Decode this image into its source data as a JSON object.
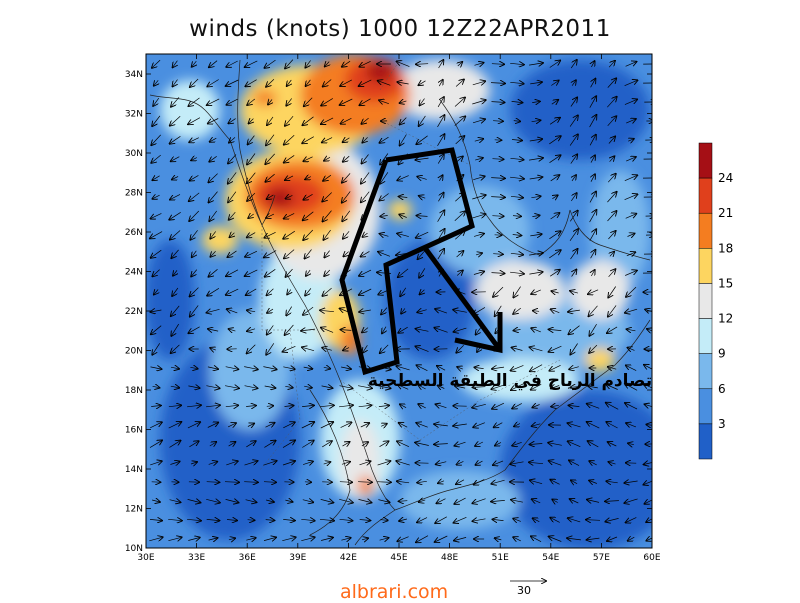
{
  "title": "winds (knots) 1000 12Z22APR2011",
  "annotation": "تصادم الرياح في الطبقة السطحية",
  "footer": {
    "site": "albrari.com",
    "reference_vector": "30"
  },
  "axes": {
    "lon_labels": [
      "30E",
      "33E",
      "36E",
      "39E",
      "42E",
      "45E",
      "48E",
      "51E",
      "54E",
      "57E",
      "60E"
    ],
    "lat_labels": [
      "34N",
      "32N",
      "30N",
      "28N",
      "26N",
      "24N",
      "22N",
      "20N",
      "18N",
      "16N",
      "14N",
      "12N",
      "10N"
    ]
  },
  "colorbar": {
    "labels": [
      "24",
      "21",
      "18",
      "15",
      "12",
      "9",
      "6",
      "3"
    ],
    "colors": [
      "#a50f15",
      "#e0401c",
      "#f47d20",
      "#fdd560",
      "#e8e8e8",
      "#c4ecf8",
      "#7ab8ec",
      "#4a8fe0",
      "#2060c8"
    ]
  },
  "colors": {
    "ocean": "#2060c8",
    "low": "#4a8fe0",
    "mid": "#7ab8ec",
    "neutral": "#e8e8e8",
    "warm": "#fdd560",
    "orange": "#f47d20",
    "red": "#e0401c",
    "dark": "#a50f15"
  }
}
